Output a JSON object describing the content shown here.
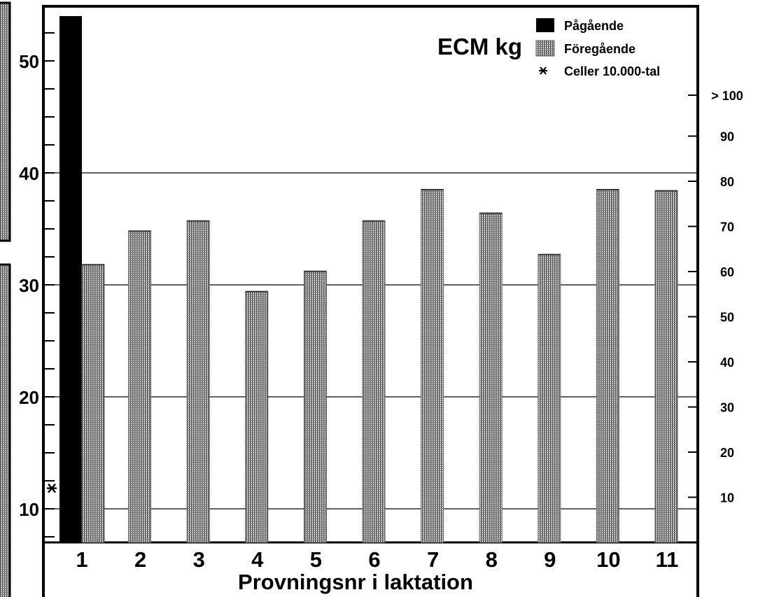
{
  "chart_data": {
    "type": "bar",
    "title": "",
    "ylabel": "ECM kg",
    "xlabel": "Provningsnr i laktation",
    "categories": [
      "1",
      "2",
      "3",
      "4",
      "5",
      "6",
      "7",
      "8",
      "9",
      "10",
      "11"
    ],
    "ylim": [
      7,
      55
    ],
    "yticks": [
      "10",
      "20",
      "30",
      "40",
      "50"
    ],
    "y2_ticks": [
      "10",
      "20",
      "30",
      "40",
      "50",
      "60",
      "70",
      "80",
      "90",
      "> 100"
    ],
    "y2_range": [
      0,
      112
    ],
    "grid": "horizontal",
    "legend_position": "top-right",
    "series": [
      {
        "name": "Pågående",
        "color": "#000000",
        "pattern": "solid",
        "values": [
          54,
          null,
          null,
          null,
          null,
          null,
          null,
          null,
          null,
          null,
          null
        ]
      },
      {
        "name": "Föregående",
        "color": "#555555",
        "pattern": "dotted",
        "values": [
          31.8,
          34.8,
          35.7,
          29.4,
          31.2,
          35.7,
          38.5,
          36.4,
          32.7,
          38.5,
          38.4
        ]
      },
      {
        "name": "Celler 10.000-tal",
        "marker": "asterisk",
        "axis": "right",
        "values": [
          12,
          null,
          null,
          null,
          null,
          null,
          null,
          null,
          null,
          null,
          null
        ]
      }
    ]
  }
}
